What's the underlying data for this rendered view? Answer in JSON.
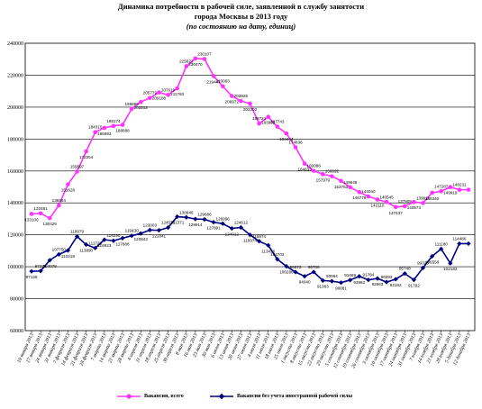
{
  "chart_data": {
    "type": "line",
    "title_lines": [
      "Динамика потребности в рабочей силе, заявленной в службу занятости",
      "города Москвы в 2013 году"
    ],
    "subtitle": "(по состоянию на дату, единиц)",
    "y_ticks": [
      "60000",
      "80000",
      "100000",
      "120000",
      "140000",
      "160000",
      "180000",
      "200000",
      "220000",
      "240000"
    ],
    "ylim": [
      60000,
      240000
    ],
    "grid": true,
    "legend_position": "bottom",
    "x": [
      "10 января 2013",
      "17 января 2013",
      "24 января 2013",
      "31 января 2013",
      "7 февраля 2013",
      "14 февраля 2013",
      "21 февраля 2013",
      "28 февраля 2013",
      "7 марта 2013",
      "14 марта 2013",
      "21 марта 2013",
      "28 марта 2013",
      "4 апреля 2013",
      "11 апреля 2013",
      "18 апреля 2013",
      "25 апреля 2013",
      "30 апреля 2013",
      "8 мая 2013",
      "16 мая 2013",
      "23 мая 2013",
      "30 мая 2013",
      "6 июня 2013",
      "13 июня 2013",
      "20 июня 2013",
      "27 июня 2013",
      "4 июля 2013",
      "11 июля 2013",
      "18 июля 2013",
      "25 июля 2013",
      "1 августа 2013",
      "8 августа 2013",
      "15 августа 2013",
      "22 августа 2013",
      "29 августа 2013",
      "5 сентября 2013",
      "12 сентября 2013",
      "19 сентября 2013",
      "26 сентября 2013",
      "3 октября 2013",
      "10 октября 2013",
      "17 октября 2013",
      "24 октября 2013",
      "31 октября 2013",
      "7 ноября 2013",
      "14 ноября 2013",
      "21 ноября 2013",
      "28 ноября 2013",
      "5 декабря 2013",
      "12 декабря 2013"
    ],
    "series": [
      {
        "name": "Вакансии, всего",
        "color": "#ff33ff",
        "marker": "circle",
        "values": [
          133106,
          133481,
          130429,
          138464,
          151626,
          159597,
          172254,
          184315,
          186993,
          188174,
          188888,
          198869,
          203212,
          205779,
          209188,
          207619,
          211760,
          225622,
          230470,
          230107,
          219447,
          213063,
          206972,
          203826,
          202202,
          189721,
          193882,
          187743,
          183464,
          174836,
          164633,
          160086,
          157979,
          156692,
          153753,
          149848,
          146779,
          144040,
          142110,
          140545,
          137437,
          137909,
          140573,
          139911,
          146340,
          147287,
          149919,
          148231,
          148231
        ],
        "labels": [
          "133106",
          "133481",
          "130429",
          "138464",
          "151626",
          "159597",
          "172254",
          "184315",
          "186993",
          "188174",
          "188888",
          "198869",
          "203212",
          "205779",
          "209188",
          "207619",
          "211760",
          "225622",
          "230470",
          "230107",
          "219447",
          "213063",
          "206972",
          "203826",
          "202202",
          "189721",
          "193882",
          "187743",
          "183464",
          "174836",
          "164633",
          "160086",
          "157979",
          "156692",
          "153753",
          "149848",
          "146779",
          "144040",
          "142110",
          "140545",
          "137437",
          "137909",
          "140573",
          "139911",
          "146340",
          "147287",
          "149919",
          "148231",
          ""
        ]
      },
      {
        "name": "Вакансии без учета иностранной рабочей силы",
        "color": "#000080",
        "marker": "diamond",
        "values": [
          97136,
          97376,
          104079,
          107750,
          110218,
          118979,
          113890,
          111728,
          116923,
          116290,
          117888,
          119430,
          120843,
          123003,
          122841,
          124521,
          131371,
          130946,
          129914,
          129686,
          127891,
          126996,
          124012,
          124612,
          119974,
          115974,
          113436,
          104702,
          100286,
          96673,
          94040,
          96706,
          91383,
          90964,
          90081,
          91669,
          93982,
          91784,
          92663,
          90393,
          92192,
          95748,
          91792,
          99320,
          106558,
          111180,
          102182,
          114486,
          114486
        ],
        "labels": [
          "97136",
          "97376",
          "104079",
          "107750",
          "110218",
          "118979",
          "113890",
          "111728",
          "116923",
          "116290",
          "117888",
          "119430",
          "120843",
          "123003",
          "122841",
          "124521",
          "131371",
          "130946",
          "129914",
          "129686",
          "127891",
          "126996",
          "124012",
          "124612",
          "119974",
          "115974",
          "113436",
          "104702",
          "100286",
          "96673",
          "94040",
          "96706",
          "91383",
          "90964",
          "90081",
          "91669",
          "93982",
          "91784",
          "92663",
          "90393",
          "92192",
          "95748",
          "91792",
          "99320",
          "106558",
          "111180",
          "102182",
          "114486",
          ""
        ]
      }
    ]
  }
}
